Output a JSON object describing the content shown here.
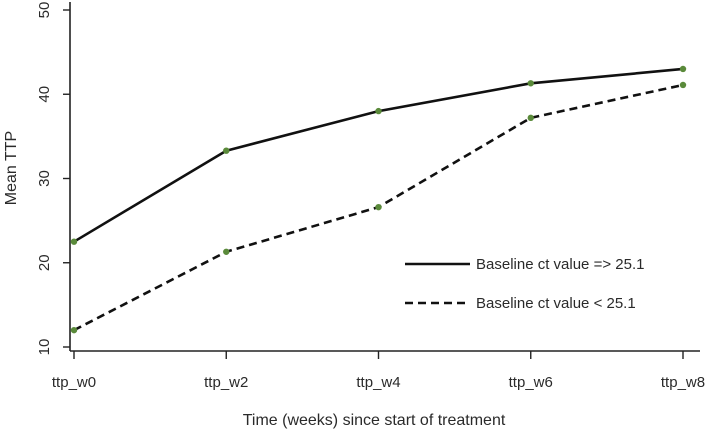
{
  "chart_data": {
    "type": "line",
    "title": "",
    "xlabel": "Time (weeks) since start of treatment",
    "ylabel": "Mean TTP",
    "categories": [
      "ttp_w0",
      "ttp_w2",
      "ttp_w4",
      "ttp_w6",
      "ttp_w8"
    ],
    "ylim": [
      10,
      50
    ],
    "yticks": [
      "10",
      "20",
      "30",
      "40",
      "50"
    ],
    "grid": false,
    "legend_position": "right",
    "marker_color": "#5a8a3a",
    "series": [
      {
        "name": "Baseline ct value => 25.1",
        "values": [
          22.5,
          33.3,
          38.0,
          41.3,
          43.0
        ],
        "style": "solid",
        "color": "#111111"
      },
      {
        "name": "Baseline ct value < 25.1",
        "values": [
          12.0,
          21.3,
          26.6,
          37.2,
          41.1
        ],
        "style": "dashed",
        "color": "#111111"
      }
    ]
  }
}
